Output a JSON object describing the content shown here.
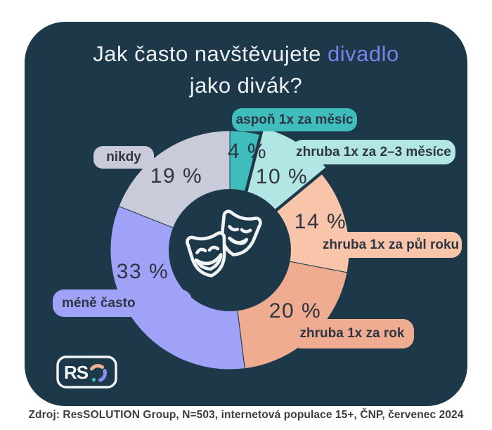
{
  "title": {
    "line1_plain": "Jak často navštěvujete",
    "line1_accent": "divadlo",
    "line2": "jako divák?",
    "accent_color": "#7683ea",
    "text_color": "#edf1f4"
  },
  "card": {
    "bg_color": "#1d3949"
  },
  "chart_data": {
    "type": "pie",
    "title": "Jak často navštěvujete divadlo jako divák?",
    "donut": true,
    "legend_position": "around-labels",
    "center_icon": "theater-masks-icon",
    "segments": [
      {
        "label": "aspoň 1x za měsíc",
        "value": 4,
        "pct_label": "4 %",
        "color": "#3fbcbc",
        "exploded": false
      },
      {
        "label": "zhruba 1x za 2–3 měsíce",
        "value": 10,
        "pct_label": "10 %",
        "color": "#b2e6e5",
        "exploded": true
      },
      {
        "label": "zhruba 1x za půl roku",
        "value": 14,
        "pct_label": "14 %",
        "color": "#f8c5aa",
        "exploded": false
      },
      {
        "label": "zhruba 1x za rok",
        "value": 20,
        "pct_label": "20 %",
        "color": "#efac90",
        "exploded": false
      },
      {
        "label": "méně často",
        "value": 33,
        "pct_label": "33 %",
        "color": "#a0a2f8",
        "exploded": false
      },
      {
        "label": "nikdy",
        "value": 19,
        "pct_label": "19 %",
        "color": "#c9cada",
        "exploded": false
      }
    ]
  },
  "logo": {
    "text": "RS"
  },
  "source": "Zdroj: ResSOLUTION Group, N=503, internetová populace 15+, ČNP, červenec 2024"
}
